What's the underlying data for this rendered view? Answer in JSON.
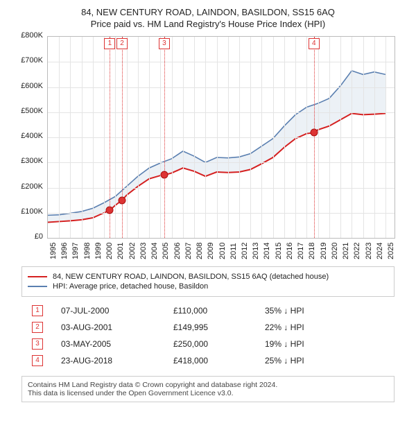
{
  "titles": {
    "address": "84, NEW CENTURY ROAD, LAINDON, BASILDON, SS15 6AQ",
    "subtitle": "Price paid vs. HM Land Registry's House Price Index (HPI)"
  },
  "chart": {
    "x_years": [
      1995,
      1996,
      1997,
      1998,
      1999,
      2000,
      2001,
      2002,
      2003,
      2004,
      2005,
      2006,
      2007,
      2008,
      2009,
      2010,
      2011,
      2012,
      2013,
      2014,
      2015,
      2016,
      2017,
      2018,
      2019,
      2020,
      2021,
      2022,
      2023,
      2024,
      2025
    ],
    "y_ticks": [
      0,
      100000,
      200000,
      300000,
      400000,
      500000,
      600000,
      700000,
      800000
    ],
    "y_tick_labels": [
      "£0",
      "£100K",
      "£200K",
      "£300K",
      "£400K",
      "£500K",
      "£600K",
      "£700K",
      "£800K"
    ],
    "ylim": [
      0,
      800000
    ],
    "xlim": [
      1995,
      2025.8
    ],
    "background_color": "#ffffff",
    "grid_color": "#e4e4e4",
    "shade_color": "rgba(102,141,180,0.12)",
    "line_property": {
      "color": "#d52020",
      "width": 2,
      "data": [
        [
          1995,
          62000
        ],
        [
          1996,
          65000
        ],
        [
          1997,
          68000
        ],
        [
          1998,
          72000
        ],
        [
          1999,
          80000
        ],
        [
          2000,
          100000
        ],
        [
          2000.5,
          110000
        ],
        [
          2001,
          130000
        ],
        [
          2001.6,
          149995
        ],
        [
          2002,
          170000
        ],
        [
          2003,
          205000
        ],
        [
          2004,
          235000
        ],
        [
          2005,
          248000
        ],
        [
          2005.34,
          250000
        ],
        [
          2006,
          258000
        ],
        [
          2007,
          278000
        ],
        [
          2008,
          265000
        ],
        [
          2009,
          245000
        ],
        [
          2010,
          262000
        ],
        [
          2011,
          260000
        ],
        [
          2012,
          262000
        ],
        [
          2013,
          272000
        ],
        [
          2014,
          295000
        ],
        [
          2015,
          320000
        ],
        [
          2016,
          360000
        ],
        [
          2017,
          395000
        ],
        [
          2018,
          415000
        ],
        [
          2018.64,
          418000
        ],
        [
          2019,
          430000
        ],
        [
          2020,
          445000
        ],
        [
          2021,
          470000
        ],
        [
          2022,
          495000
        ],
        [
          2023,
          490000
        ],
        [
          2024,
          492000
        ],
        [
          2025,
          495000
        ]
      ]
    },
    "line_hpi": {
      "color": "#5a7fb0",
      "width": 1.6,
      "data": [
        [
          1995,
          90000
        ],
        [
          1996,
          92000
        ],
        [
          1997,
          98000
        ],
        [
          1998,
          105000
        ],
        [
          1999,
          118000
        ],
        [
          2000,
          140000
        ],
        [
          2001,
          165000
        ],
        [
          2002,
          205000
        ],
        [
          2003,
          245000
        ],
        [
          2004,
          278000
        ],
        [
          2005,
          298000
        ],
        [
          2006,
          315000
        ],
        [
          2007,
          345000
        ],
        [
          2008,
          325000
        ],
        [
          2009,
          300000
        ],
        [
          2010,
          320000
        ],
        [
          2011,
          318000
        ],
        [
          2012,
          322000
        ],
        [
          2013,
          335000
        ],
        [
          2014,
          365000
        ],
        [
          2015,
          395000
        ],
        [
          2016,
          445000
        ],
        [
          2017,
          490000
        ],
        [
          2018,
          520000
        ],
        [
          2019,
          535000
        ],
        [
          2020,
          555000
        ],
        [
          2021,
          605000
        ],
        [
          2022,
          665000
        ],
        [
          2023,
          650000
        ],
        [
          2024,
          660000
        ],
        [
          2025,
          650000
        ]
      ]
    },
    "sales": [
      {
        "n": "1",
        "year": 2000.51,
        "price": 110000,
        "date": "07-JUL-2000",
        "diff": "35% ↓ HPI"
      },
      {
        "n": "2",
        "year": 2001.59,
        "price": 149995,
        "date": "03-AUG-2001",
        "diff": "22% ↓ HPI"
      },
      {
        "n": "3",
        "year": 2005.34,
        "price": 250000,
        "date": "03-MAY-2005",
        "diff": "19% ↓ HPI"
      },
      {
        "n": "4",
        "year": 2018.64,
        "price": 418000,
        "date": "23-AUG-2018",
        "diff": "25% ↓ HPI"
      }
    ],
    "sale_prices_fmt": [
      "£110,000",
      "£149,995",
      "£250,000",
      "£418,000"
    ]
  },
  "legend": {
    "property": "84, NEW CENTURY ROAD, LAINDON, BASILDON, SS15 6AQ (detached house)",
    "hpi": "HPI: Average price, detached house, Basildon"
  },
  "footnote": {
    "line1": "Contains HM Land Registry data © Crown copyright and database right 2024.",
    "line2": "This data is licensed under the Open Government Licence v3.0."
  }
}
